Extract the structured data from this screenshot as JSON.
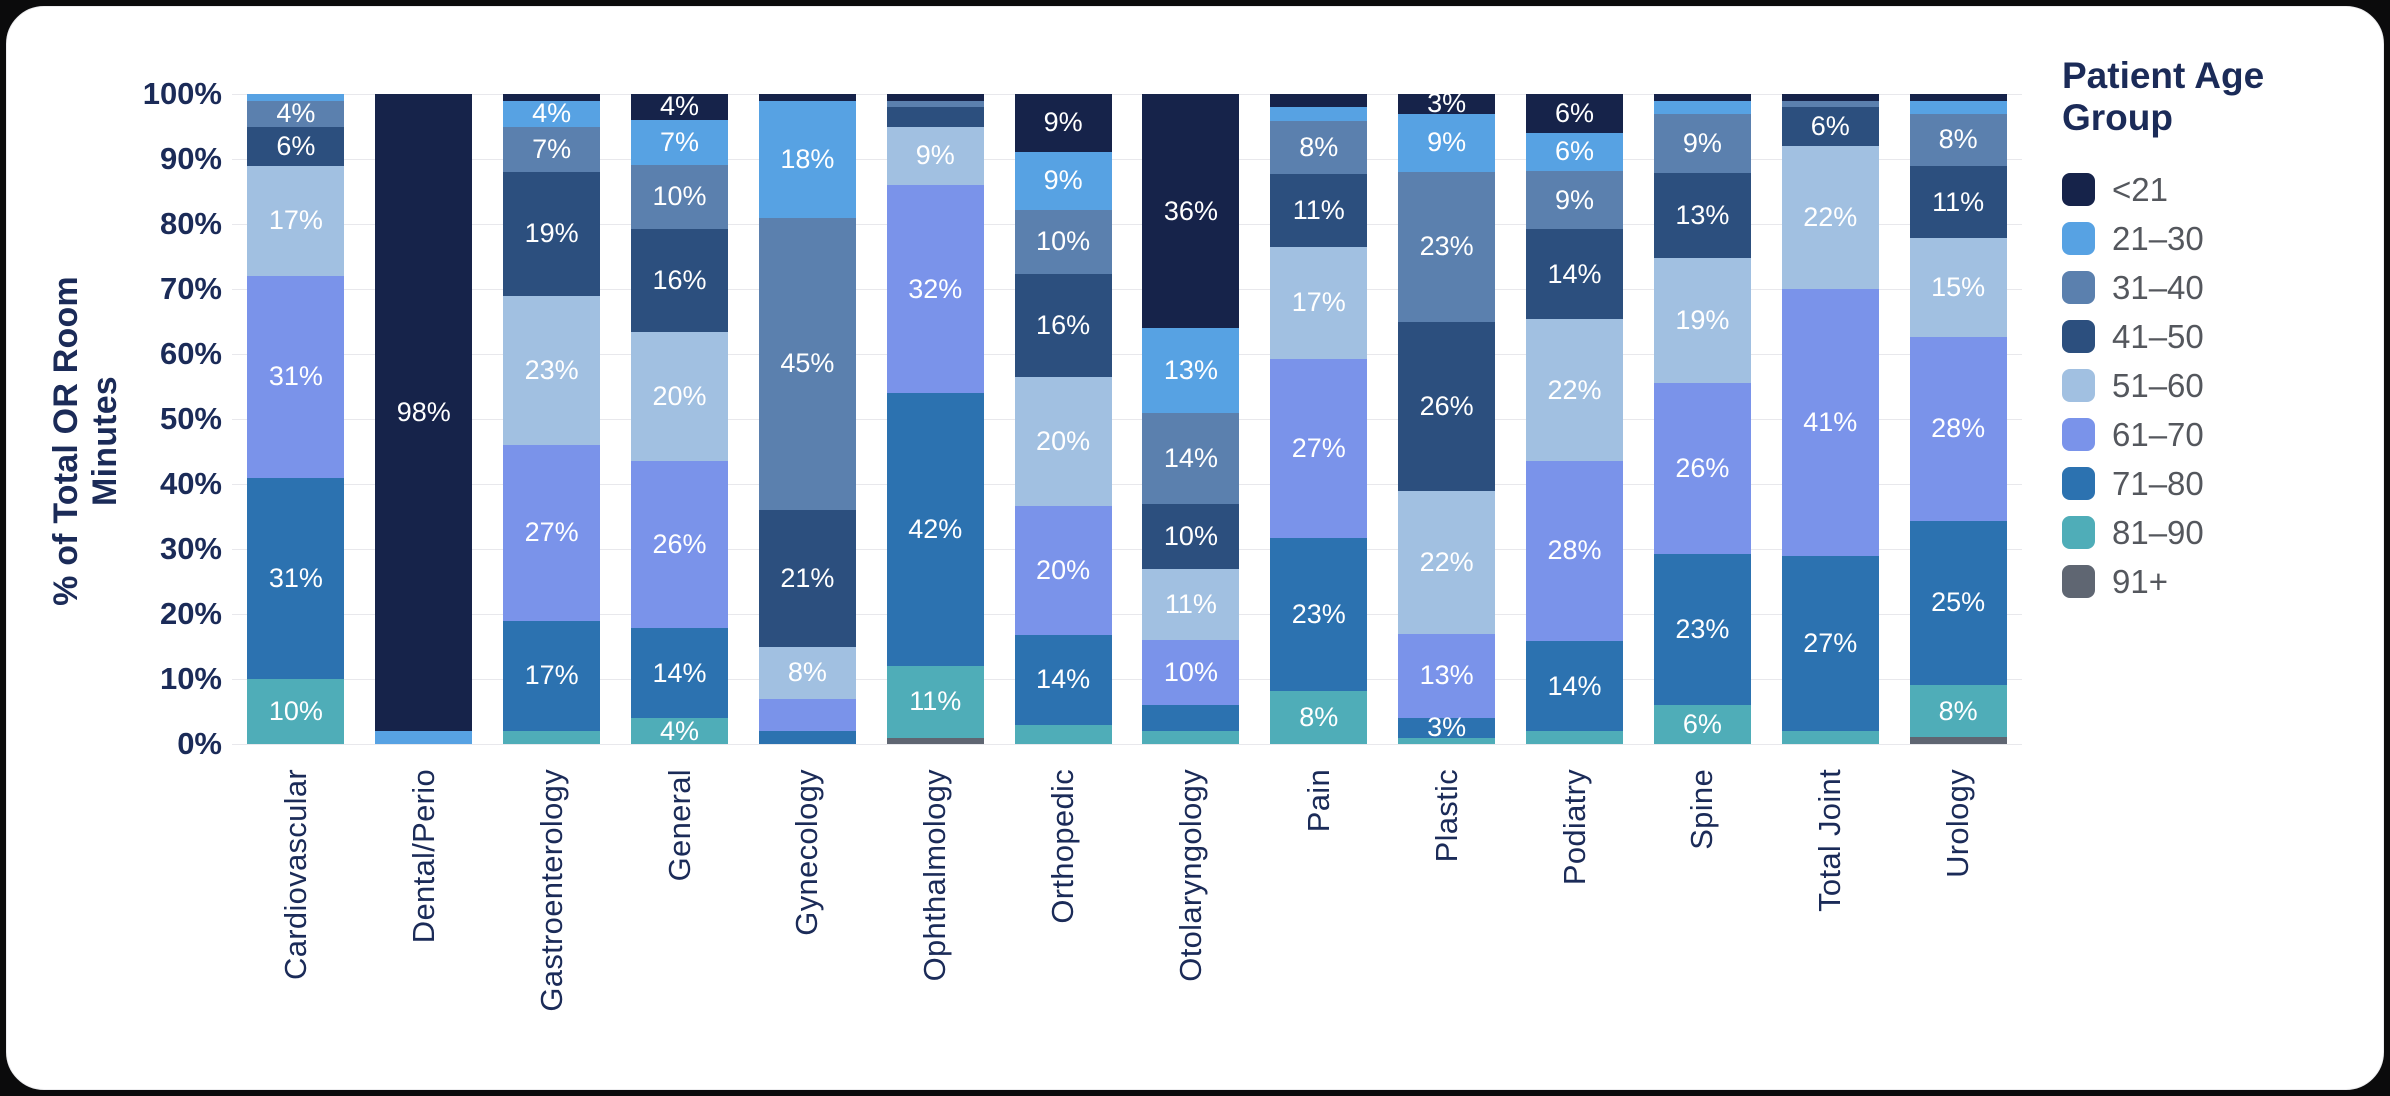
{
  "page": {
    "background": "#0b0b0c",
    "card_background": "#ffffff",
    "gridline_color": "#e8e8ec",
    "axis_text_color": "#1b2b58",
    "legend_text_color": "#54575d",
    "bar_label_color": "#ffffff"
  },
  "chart_data": {
    "type": "bar",
    "subtype": "stacked-100-percent-column",
    "title": "",
    "ylabel": "% of Total OR Room Minutes",
    "xlabel": "",
    "ylim": [
      0,
      100
    ],
    "grid": true,
    "y_ticks": [
      "100%",
      "90%",
      "80%",
      "70%",
      "60%",
      "50%",
      "40%",
      "30%",
      "20%",
      "10%",
      "0%"
    ],
    "legend_title": "Patient Age Group",
    "legend_position": "right",
    "age_groups": [
      {
        "label": "<21",
        "color": "#16234a"
      },
      {
        "label": "21–30",
        "color": "#57a2e3"
      },
      {
        "label": "31–40",
        "color": "#5b80ae"
      },
      {
        "label": "41–50",
        "color": "#2c4f7e"
      },
      {
        "label": "51–60",
        "color": "#a1c0e1"
      },
      {
        "label": "61–70",
        "color": "#7a93ea"
      },
      {
        "label": "71–80",
        "color": "#2c72b0"
      },
      {
        "label": "81–90",
        "color": "#4fadb8"
      },
      {
        "label": "91+",
        "color": "#5f6672"
      }
    ],
    "categories": [
      {
        "label": "Cardiovascular",
        "values": [
          0,
          1,
          4,
          6,
          17,
          31,
          31,
          10,
          0
        ],
        "seg_labels": [
          "",
          "",
          "4%",
          "6%",
          "17%",
          "31%",
          "31%",
          "10%",
          ""
        ]
      },
      {
        "label": "Dental/Perio",
        "values": [
          98,
          2,
          0,
          0,
          0,
          0,
          0,
          0,
          0
        ],
        "seg_labels": [
          "98%",
          "",
          "",
          "",
          "",
          "",
          "",
          "",
          ""
        ]
      },
      {
        "label": "Gastroenterology",
        "values": [
          1,
          4,
          7,
          19,
          23,
          27,
          17,
          2,
          0
        ],
        "seg_labels": [
          "",
          "4%",
          "7%",
          "19%",
          "23%",
          "27%",
          "17%",
          "",
          ""
        ]
      },
      {
        "label": "General",
        "values": [
          4,
          7,
          10,
          16,
          20,
          26,
          14,
          4,
          0
        ],
        "seg_labels": [
          "4%",
          "7%",
          "10%",
          "16%",
          "20%",
          "26%",
          "14%",
          "4%",
          ""
        ]
      },
      {
        "label": "Gynecology",
        "values": [
          1,
          18,
          45,
          21,
          8,
          5,
          2,
          0,
          0
        ],
        "seg_labels": [
          "",
          "18%",
          "45%",
          "21%",
          "8%",
          "",
          "",
          "",
          ""
        ]
      },
      {
        "label": "Ophthalmology",
        "values": [
          1,
          0,
          1,
          3,
          9,
          32,
          42,
          11,
          1
        ],
        "seg_labels": [
          "",
          "",
          "",
          "",
          "9%",
          "32%",
          "42%",
          "11%",
          ""
        ]
      },
      {
        "label": "Orthopedic",
        "values": [
          9,
          9,
          10,
          16,
          20,
          20,
          14,
          3,
          0
        ],
        "seg_labels": [
          "9%",
          "9%",
          "10%",
          "16%",
          "20%",
          "20%",
          "14%",
          "",
          ""
        ]
      },
      {
        "label": "Otolaryngology",
        "values": [
          36,
          13,
          14,
          10,
          11,
          10,
          4,
          2,
          0
        ],
        "seg_labels": [
          "36%",
          "13%",
          "14%",
          "10%",
          "11%",
          "10%",
          "",
          "",
          ""
        ]
      },
      {
        "label": "Pain",
        "values": [
          2,
          2,
          8,
          11,
          17,
          27,
          23,
          8,
          0
        ],
        "seg_labels": [
          "",
          "",
          "8%",
          "11%",
          "17%",
          "27%",
          "23%",
          "8%",
          ""
        ]
      },
      {
        "label": "Plastic",
        "values": [
          3,
          9,
          23,
          26,
          22,
          13,
          3,
          1,
          0
        ],
        "seg_labels": [
          "3%",
          "9%",
          "23%",
          "26%",
          "22%",
          "13%",
          "3%",
          "",
          ""
        ]
      },
      {
        "label": "Podiatry",
        "values": [
          6,
          6,
          9,
          14,
          22,
          28,
          14,
          2,
          0
        ],
        "seg_labels": [
          "6%",
          "6%",
          "9%",
          "14%",
          "22%",
          "28%",
          "14%",
          "",
          ""
        ]
      },
      {
        "label": "Spine",
        "values": [
          1,
          2,
          9,
          13,
          19,
          26,
          23,
          6,
          0
        ],
        "seg_labels": [
          "",
          "",
          "9%",
          "13%",
          "19%",
          "26%",
          "23%",
          "6%",
          ""
        ]
      },
      {
        "label": "Total Joint",
        "values": [
          1,
          0,
          1,
          6,
          22,
          41,
          27,
          2,
          0
        ],
        "seg_labels": [
          "",
          "",
          "",
          "6%",
          "22%",
          "41%",
          "27%",
          "",
          ""
        ]
      },
      {
        "label": "Urology",
        "values": [
          1,
          2,
          8,
          11,
          15,
          28,
          25,
          8,
          1
        ],
        "seg_labels": [
          "",
          "",
          "8%",
          "11%",
          "15%",
          "28%",
          "25%",
          "8%",
          ""
        ]
      }
    ]
  }
}
